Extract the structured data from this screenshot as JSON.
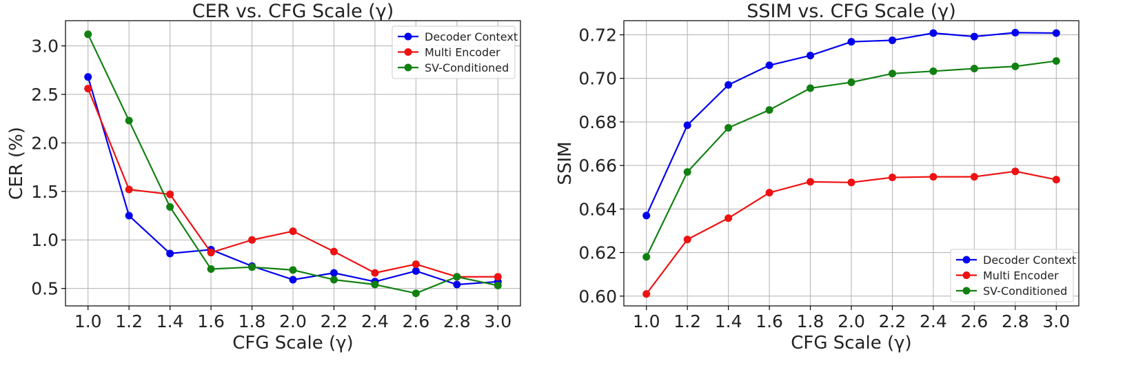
{
  "chart_data": [
    {
      "type": "line",
      "title": "CER vs. CFG Scale (γ)",
      "xlabel": "CFG Scale (γ)",
      "ylabel": "CER (%)",
      "x": [
        1.0,
        1.2,
        1.4,
        1.6,
        1.8,
        2.0,
        2.2,
        2.4,
        2.6,
        2.8,
        3.0
      ],
      "xticks": [
        "1.0",
        "1.2",
        "1.4",
        "1.6",
        "1.8",
        "2.0",
        "2.2",
        "2.4",
        "2.6",
        "2.8",
        "3.0"
      ],
      "xlim": [
        0.89,
        3.11
      ],
      "ylim": [
        0.32,
        3.26
      ],
      "yticks": [
        0.5,
        1.0,
        1.5,
        2.0,
        2.5,
        3.0
      ],
      "ytick_labels": [
        "0.5",
        "1.0",
        "1.5",
        "2.0",
        "2.5",
        "3.0"
      ],
      "grid": true,
      "legend_position": "top-right",
      "series": [
        {
          "name": "Decoder Context",
          "color": "#0000ee",
          "values": [
            2.68,
            1.25,
            0.86,
            0.9,
            0.73,
            0.59,
            0.66,
            0.57,
            0.68,
            0.54,
            0.57
          ]
        },
        {
          "name": "Multi Encoder",
          "color": "#ee1111",
          "values": [
            2.56,
            1.52,
            1.47,
            0.87,
            1.0,
            1.09,
            0.88,
            0.66,
            0.75,
            0.62,
            0.62
          ]
        },
        {
          "name": "SV-Conditioned",
          "color": "#118011",
          "values": [
            3.12,
            2.23,
            1.34,
            0.7,
            0.72,
            0.69,
            0.59,
            0.54,
            0.45,
            0.62,
            0.53
          ]
        }
      ]
    },
    {
      "type": "line",
      "title": "SSIM vs. CFG Scale (γ)",
      "xlabel": "CFG Scale (γ)",
      "ylabel": "SSIM",
      "x": [
        1.0,
        1.2,
        1.4,
        1.6,
        1.8,
        2.0,
        2.2,
        2.4,
        2.6,
        2.8,
        3.0
      ],
      "xticks": [
        "1.0",
        "1.2",
        "1.4",
        "1.6",
        "1.8",
        "2.0",
        "2.2",
        "2.4",
        "2.6",
        "2.8",
        "3.0"
      ],
      "xlim": [
        0.89,
        3.11
      ],
      "ylim": [
        0.5955,
        0.7265
      ],
      "yticks": [
        0.6,
        0.62,
        0.64,
        0.66,
        0.68,
        0.7,
        0.72
      ],
      "ytick_labels": [
        "0.60",
        "0.62",
        "0.64",
        "0.66",
        "0.68",
        "0.70",
        "0.72"
      ],
      "grid": true,
      "legend_position": "bottom-right",
      "series": [
        {
          "name": "Decoder Context",
          "color": "#0000ee",
          "values": [
            0.637,
            0.6785,
            0.697,
            0.706,
            0.7105,
            0.7168,
            0.7175,
            0.7208,
            0.7192,
            0.721,
            0.7208
          ]
        },
        {
          "name": "Multi Encoder",
          "color": "#ee1111",
          "values": [
            0.601,
            0.626,
            0.6358,
            0.6475,
            0.6525,
            0.6522,
            0.6545,
            0.6548,
            0.6548,
            0.6573,
            0.6535
          ]
        },
        {
          "name": "SV-Conditioned",
          "color": "#118011",
          "values": [
            0.618,
            0.657,
            0.6773,
            0.6855,
            0.6955,
            0.6982,
            0.7022,
            0.7033,
            0.7045,
            0.7055,
            0.708
          ]
        }
      ]
    }
  ]
}
